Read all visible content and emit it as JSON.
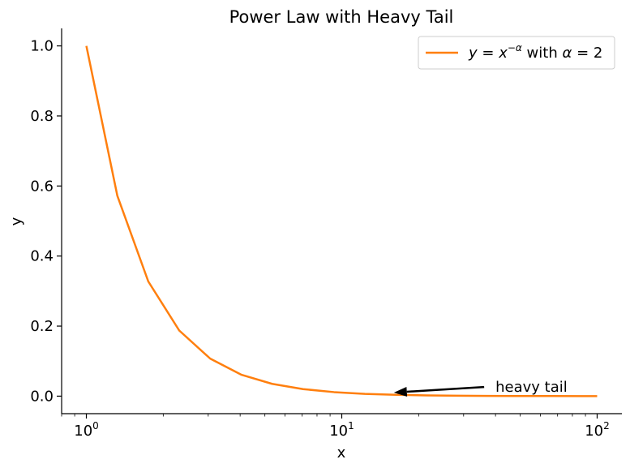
{
  "chart_data": {
    "type": "line",
    "title": "Power Law with Heavy Tail",
    "xlabel": "x",
    "ylabel": "y",
    "xscale": "log",
    "xlim": [
      0.8,
      125
    ],
    "ylim": [
      -0.05,
      1.05
    ],
    "grid": false,
    "legend_position": "top-right",
    "x_ticks": [
      {
        "value": 1,
        "base": "10",
        "exp": "0"
      },
      {
        "value": 10,
        "base": "10",
        "exp": "1"
      },
      {
        "value": 100,
        "base": "10",
        "exp": "2"
      }
    ],
    "y_ticks": [
      {
        "value": 0.0,
        "label": "0.0"
      },
      {
        "value": 0.2,
        "label": "0.2"
      },
      {
        "value": 0.4,
        "label": "0.4"
      },
      {
        "value": 0.6,
        "label": "0.6"
      },
      {
        "value": 0.8,
        "label": "0.8"
      },
      {
        "value": 1.0,
        "label": "1.0"
      }
    ],
    "series": [
      {
        "legend_label": "y = x^(−α) with α = 2",
        "color": "#ff7f0e",
        "alpha": 2,
        "x": [
          1.0,
          1.3219,
          1.7475,
          2.3101,
          3.0539,
          4.037,
          5.3367,
          7.0548,
          9.326,
          12.3285,
          16.2975,
          21.5443,
          28.4804,
          37.6494,
          49.7702,
          65.7933,
          86.9749,
          100.0
        ],
        "y": [
          1.0,
          0.5723,
          0.3275,
          0.1874,
          0.1072,
          0.0614,
          0.0351,
          0.0201,
          0.0115,
          0.00658,
          0.00376,
          0.00215,
          0.00123,
          0.000705,
          0.000404,
          0.000231,
          0.000132,
          0.0001
        ]
      }
    ],
    "annotations": [
      {
        "text": "heavy tail",
        "x": 40,
        "y": 0.01,
        "arrow_to_x": 16,
        "arrow_to_y": 0.001
      }
    ]
  }
}
